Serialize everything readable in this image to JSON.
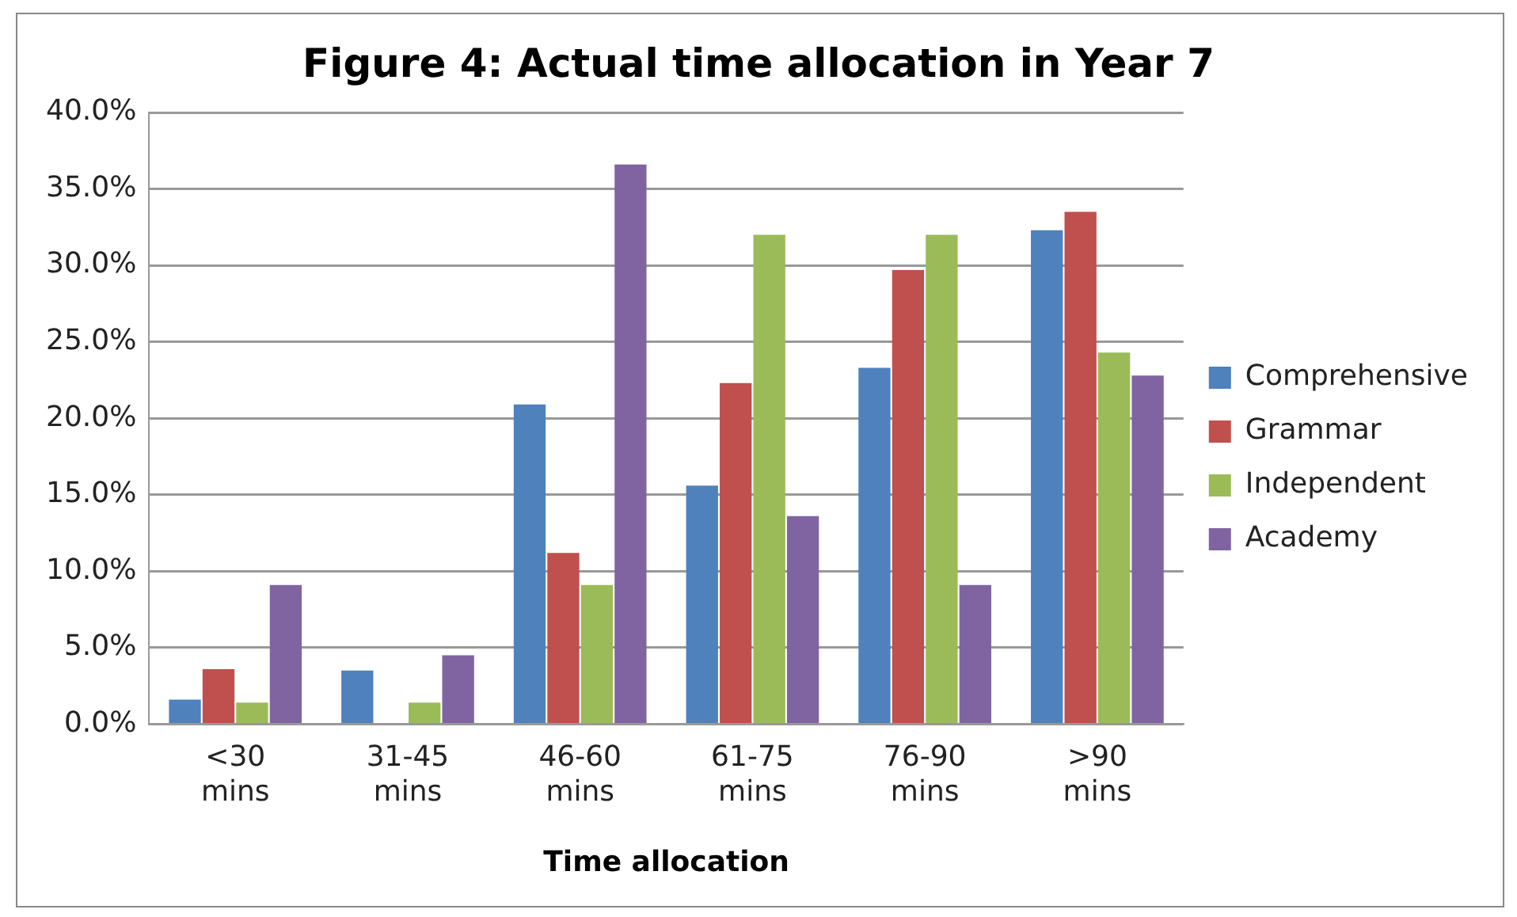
{
  "chart_data": {
    "type": "bar",
    "title": "Figure 4: Actual time allocation in Year 7",
    "xlabel": "Time allocation",
    "categories": [
      "<30 mins",
      "31-45 mins",
      "46-60 mins",
      "61-75 mins",
      "76-90 mins",
      ">90 mins"
    ],
    "series": [
      {
        "name": "Comprehensive",
        "color": "#4f81bd",
        "values": [
          1.6,
          3.5,
          20.9,
          15.6,
          23.3,
          32.3
        ]
      },
      {
        "name": "Grammar",
        "color": "#c0504d",
        "values": [
          3.6,
          0,
          11.2,
          22.3,
          29.7,
          33.5
        ]
      },
      {
        "name": "Independent",
        "color": "#9bbb59",
        "values": [
          1.4,
          1.4,
          9.1,
          32.0,
          32.0,
          24.3
        ]
      },
      {
        "name": "Academy",
        "color": "#8064a2",
        "values": [
          9.1,
          4.5,
          36.6,
          13.6,
          9.1,
          22.8
        ]
      }
    ],
    "ylim": [
      0,
      40
    ],
    "yticks": [
      {
        "value": 0,
        "label": "0.0%"
      },
      {
        "value": 5,
        "label": "5.0%"
      },
      {
        "value": 10,
        "label": "10.0%"
      },
      {
        "value": 15,
        "label": "15.0%"
      },
      {
        "value": 20,
        "label": "20.0%"
      },
      {
        "value": 25,
        "label": "25.0%"
      },
      {
        "value": 30,
        "label": "30.0%"
      },
      {
        "value": 35,
        "label": "35.0%"
      },
      {
        "value": 40,
        "label": "40.0%"
      }
    ],
    "grid": "y",
    "legend": "right"
  }
}
